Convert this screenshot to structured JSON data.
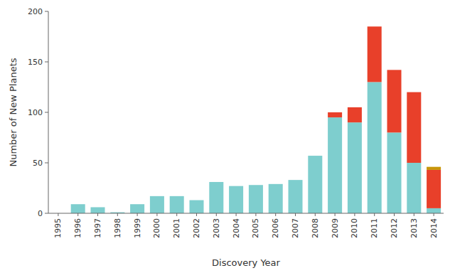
{
  "chart_data": {
    "type": "bar",
    "stacked": true,
    "grid": false,
    "xlabel": "Discovery Year",
    "ylabel": "Number of New Planets",
    "categories": [
      "1995",
      "1996",
      "1997",
      "1998",
      "1999",
      "2000",
      "2001",
      "2002",
      "2003",
      "2004",
      "2005",
      "2006",
      "2007",
      "2008",
      "2009",
      "2010",
      "2011",
      "2012",
      "2013",
      "2014"
    ],
    "series": [
      {
        "color": "#7ecece",
        "values": [
          0,
          9,
          6,
          1,
          9,
          17,
          17,
          13,
          31,
          27,
          28,
          29,
          33,
          57,
          95,
          90,
          130,
          80,
          50,
          5
        ]
      },
      {
        "color": "#e8402a",
        "values": [
          0,
          0,
          0,
          0,
          0,
          0,
          0,
          0,
          0,
          0,
          0,
          0,
          0,
          0,
          5,
          15,
          55,
          62,
          70,
          38
        ]
      },
      {
        "color": "#c8960a",
        "values": [
          0,
          0,
          0,
          0,
          0,
          0,
          0,
          0,
          0,
          0,
          0,
          0,
          0,
          0,
          0,
          0,
          0,
          0,
          0,
          3
        ]
      }
    ],
    "ylim": [
      0,
      200
    ],
    "yticks": [
      0,
      50,
      100,
      150,
      200
    ]
  }
}
